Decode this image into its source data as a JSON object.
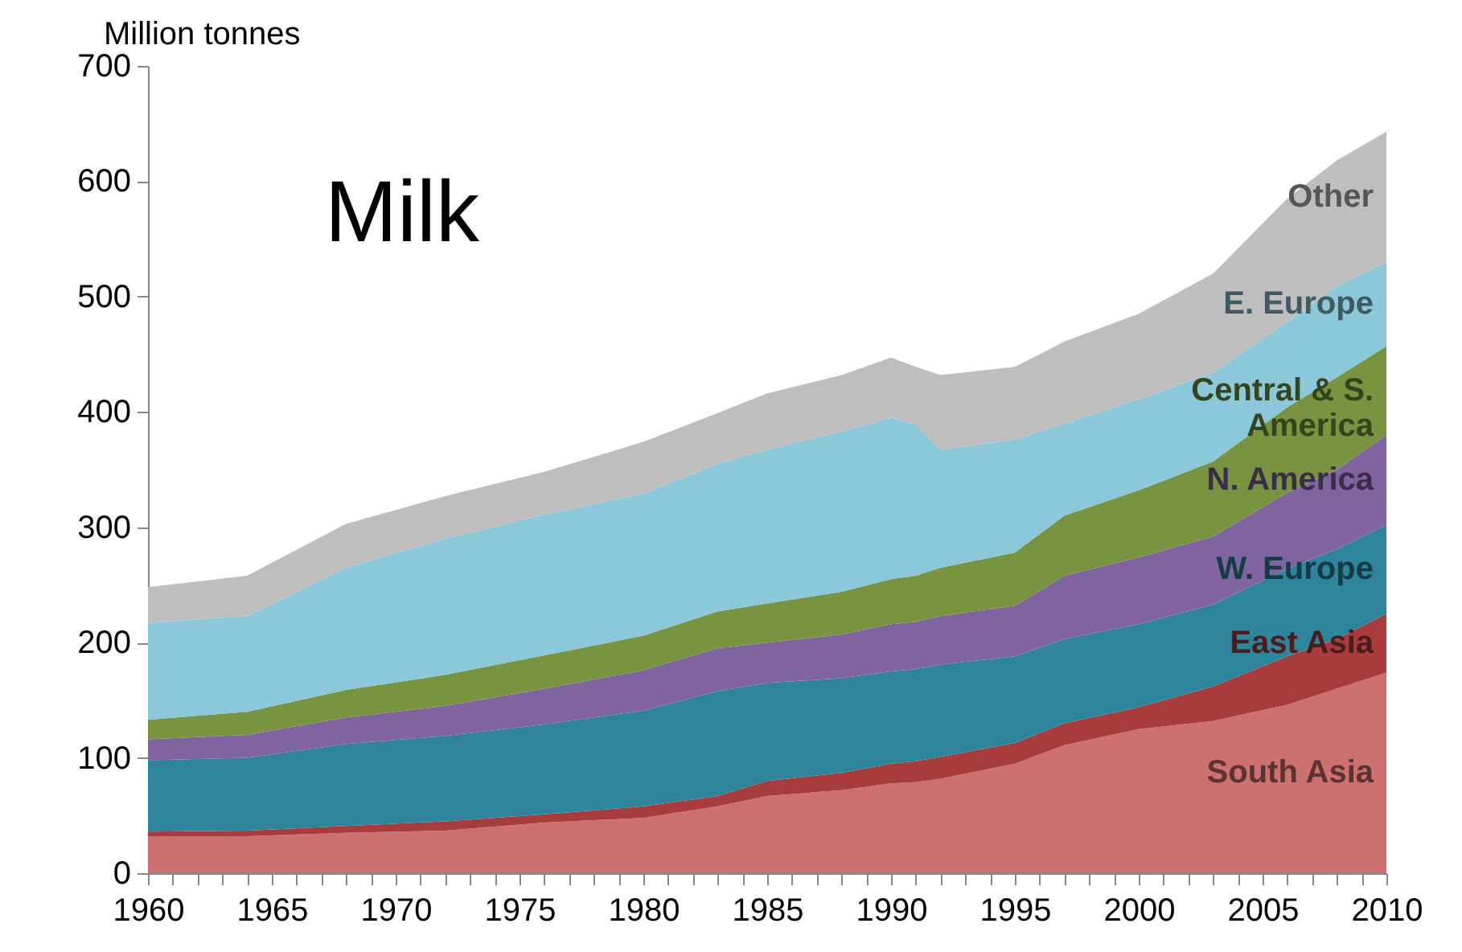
{
  "chart_data": {
    "type": "area",
    "title": "Milk",
    "ylabel": "Million tonnes",
    "stacked": true,
    "x": [
      1960,
      1964,
      1968,
      1972,
      1976,
      1980,
      1983,
      1985,
      1988,
      1990,
      1991,
      1992,
      1995,
      1997,
      2000,
      2003,
      2006,
      2008,
      2010
    ],
    "series": [
      {
        "name": "South Asia",
        "color": "#cd7070",
        "values": [
          32,
          32,
          35,
          37,
          44,
          48,
          58,
          67,
          72,
          78,
          79,
          82,
          95,
          111,
          125,
          132,
          146,
          160,
          174
        ]
      },
      {
        "name": "East Asia",
        "color": "#a83c3c",
        "values": [
          4,
          5,
          6,
          8,
          7,
          10,
          9,
          13,
          15,
          17,
          18,
          19,
          18,
          19,
          19,
          30,
          42,
          43,
          51
        ]
      },
      {
        "name": "W. Europe",
        "color": "#2e849a",
        "values": [
          62,
          63,
          71,
          74,
          78,
          83,
          91,
          85,
          82,
          80,
          80,
          80,
          75,
          73,
          72,
          71,
          76,
          78,
          77
        ]
      },
      {
        "name": "N. America",
        "color": "#8064a0",
        "values": [
          18,
          20,
          23,
          26,
          31,
          35,
          37,
          35,
          38,
          41,
          41,
          42,
          44,
          55,
          58,
          59,
          66,
          69,
          78
        ]
      },
      {
        "name": "Central & S. America",
        "color": "#789440",
        "values": [
          17,
          20,
          24,
          27,
          29,
          30,
          32,
          34,
          37,
          39,
          40,
          42,
          46,
          52,
          58,
          65,
          74,
          80,
          77
        ]
      },
      {
        "name": "E. Europe",
        "color": "#8bc8da",
        "values": [
          84,
          83,
          106,
          118,
          122,
          123,
          128,
          133,
          139,
          140,
          131,
          102,
          98,
          80,
          79,
          77,
          74,
          79,
          73
        ]
      },
      {
        "name": "Other",
        "color": "#bebebe",
        "values": [
          31,
          35,
          38,
          37,
          37,
          45,
          44,
          49,
          49,
          52,
          50,
          65,
          63,
          71,
          74,
          86,
          107,
          109,
          113
        ]
      }
    ],
    "xlim": [
      1960,
      2010
    ],
    "xticks": [
      1960,
      {
        "value": 1961,
        "label": null
      },
      {
        "value": 1962,
        "label": null
      },
      {
        "value": 1963,
        "label": null
      },
      {
        "value": 1964,
        "label": null
      },
      1965,
      {
        "value": 1966,
        "label": null
      },
      {
        "value": 1967,
        "label": null
      },
      {
        "value": 1968,
        "label": null
      },
      {
        "value": 1969,
        "label": null
      },
      1970,
      {
        "value": 1971,
        "label": null
      },
      {
        "value": 1972,
        "label": null
      },
      {
        "value": 1973,
        "label": null
      },
      {
        "value": 1974,
        "label": null
      },
      1975,
      {
        "value": 1976,
        "label": null
      },
      {
        "value": 1977,
        "label": null
      },
      {
        "value": 1978,
        "label": null
      },
      {
        "value": 1979,
        "label": null
      },
      1980,
      {
        "value": 1981,
        "label": null
      },
      {
        "value": 1982,
        "label": null
      },
      {
        "value": 1983,
        "label": null
      },
      {
        "value": 1984,
        "label": null
      },
      1985,
      {
        "value": 1986,
        "label": null
      },
      {
        "value": 1987,
        "label": null
      },
      {
        "value": 1988,
        "label": null
      },
      {
        "value": 1989,
        "label": null
      },
      1990,
      {
        "value": 1991,
        "label": null
      },
      {
        "value": 1992,
        "label": null
      },
      {
        "value": 1993,
        "label": null
      },
      {
        "value": 1994,
        "label": null
      },
      1995,
      {
        "value": 1996,
        "label": null
      },
      {
        "value": 1997,
        "label": null
      },
      {
        "value": 1998,
        "label": null
      },
      {
        "value": 1999,
        "label": null
      },
      2000,
      {
        "value": 2001,
        "label": null
      },
      {
        "value": 2002,
        "label": null
      },
      {
        "value": 2003,
        "label": null
      },
      {
        "value": 2004,
        "label": null
      },
      2005,
      {
        "value": 2006,
        "label": null
      },
      {
        "value": 2007,
        "label": null
      },
      {
        "value": 2008,
        "label": null
      },
      {
        "value": 2009,
        "label": null
      },
      2010
    ],
    "ylim": [
      0,
      700
    ],
    "yticks": [
      0,
      100,
      200,
      300,
      400,
      500,
      600,
      700
    ],
    "grid": false,
    "legend": false
  }
}
